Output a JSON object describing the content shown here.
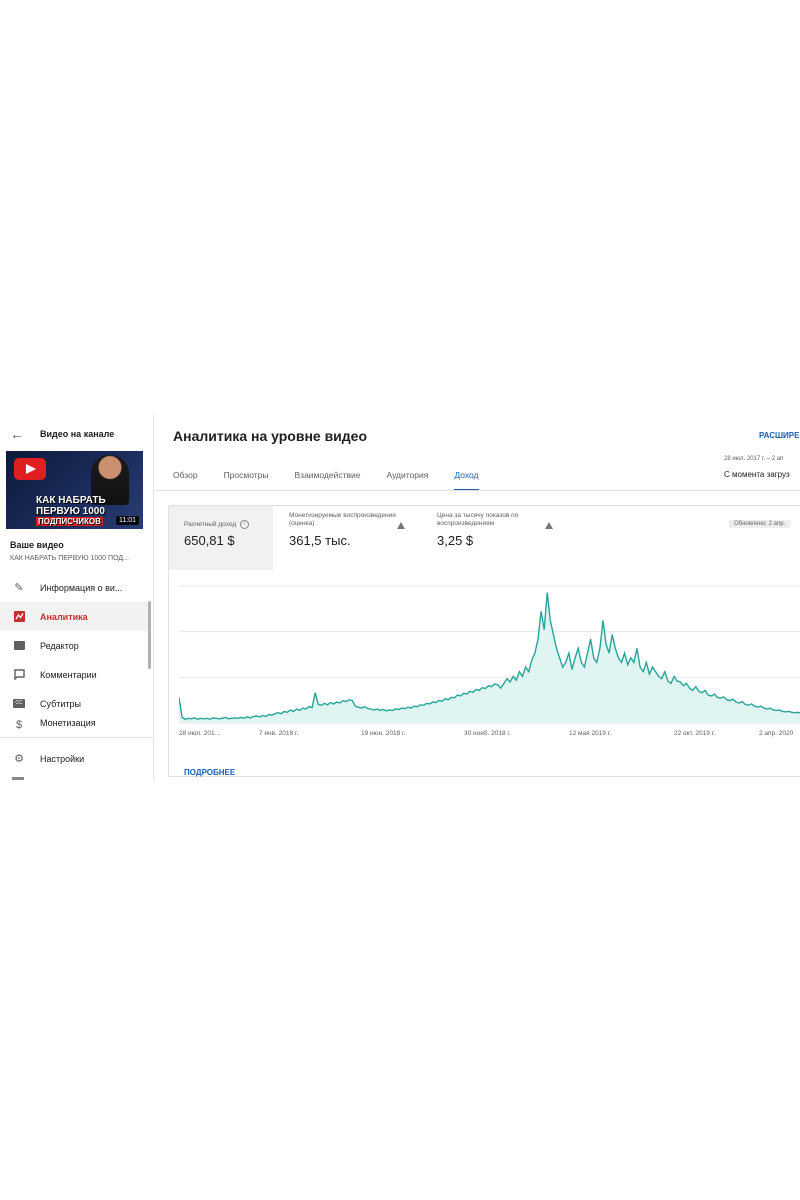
{
  "sidebar": {
    "back_label": "Видео на канале",
    "thumbnail": {
      "line1": "КАК НАБРАТЬ",
      "line2": "ПЕРВУЮ 1000",
      "line3": "ПОДПИСЧИКОВ",
      "duration": "11:01"
    },
    "your_video": "Ваше видео",
    "video_title": "КАК НАБРАТЬ ПЕРВУЮ 1000 ПОД...",
    "items": [
      {
        "label": "Информация о ви...",
        "icon": "pencil-icon"
      },
      {
        "label": "Аналитика",
        "icon": "analytics-icon",
        "active": true
      },
      {
        "label": "Редактор",
        "icon": "editor-icon"
      },
      {
        "label": "Комментарии",
        "icon": "comments-icon"
      },
      {
        "label": "Субтитры",
        "icon": "subtitles-icon"
      },
      {
        "label": "Монетизация",
        "icon": "monetization-icon"
      }
    ],
    "settings_label": "Настройки"
  },
  "header": {
    "title": "Аналитика на уровне видео",
    "expand": "РАСШИРЕ",
    "date_range": "28 июл. 2017 г. – 2 ап",
    "date_scope": "С момента загруз"
  },
  "tabs": [
    {
      "label": "Обзор"
    },
    {
      "label": "Просмотры"
    },
    {
      "label": "Взаимодействие"
    },
    {
      "label": "Аудитория"
    },
    {
      "label": "Доход",
      "active": true
    }
  ],
  "metrics": [
    {
      "label": "Расчетный доход",
      "value": "650,81 $"
    },
    {
      "label": "Монетизируемые воспроизведения (оценка)",
      "value": "361,5 тыс."
    },
    {
      "label": "Цена за тысячу показов по воспроизведениям",
      "value": "3,25 $"
    }
  ],
  "updated": "Обновлено: 2 апр.",
  "more_link": "ПОДРОБНЕЕ",
  "colors": {
    "accent": "#1a5fb4",
    "active_nav": "#c4302b",
    "chart_line": "#26a69a",
    "chart_fill": "#e0f4f1"
  },
  "chart_data": {
    "type": "area",
    "x_ticks": [
      "28 июл. 201...",
      "7 янв. 2018 г.",
      "19 июн. 2018 г.",
      "30 нояб. 2018 г.",
      "12 мая 2019 г.",
      "22 окт. 2019 г.",
      "2 апр. 2020"
    ],
    "grid": true,
    "series": [
      {
        "values": [
          5.5,
          1.2,
          0.8,
          1,
          0.9,
          1.1,
          0.8,
          1,
          0.9,
          1,
          0.8,
          1.1,
          1,
          0.9,
          1,
          1.2,
          0.9,
          1,
          1.1,
          1,
          1.2,
          1,
          1.3,
          1.1,
          1.4,
          1.5,
          1.3,
          1.6,
          1.4,
          1.8,
          1.7,
          2,
          2.2,
          2,
          2.5,
          2.3,
          2.8,
          2.5,
          3,
          2.7,
          3.2,
          3,
          3.5,
          3.3,
          6.5,
          4,
          3.8,
          4.2,
          3.9,
          4.4,
          4.1,
          4.5,
          4.3,
          4.8,
          4.6,
          5,
          4.8,
          3.6,
          3.4,
          3.2,
          3.5,
          3.1,
          3,
          2.8,
          3,
          2.7,
          2.9,
          2.6,
          2.8,
          2.7,
          3,
          2.9,
          3.2,
          3.1,
          3.4,
          3.2,
          3.6,
          3.5,
          3.9,
          3.8,
          4.2,
          4.1,
          4.5,
          4.4,
          4.8,
          4.7,
          5.2,
          5,
          5.5,
          5.4,
          6,
          5.8,
          6.4,
          6.2,
          6.8,
          6.6,
          7.2,
          7,
          7.6,
          7.4,
          8,
          7.8,
          8.4,
          8.2,
          7.5,
          8.5,
          9.5,
          8.8,
          10,
          9.2,
          11,
          10,
          12,
          11,
          13.5,
          15,
          18,
          24,
          20,
          28,
          22,
          19,
          16,
          14,
          12,
          13,
          15,
          11.5,
          14,
          16,
          13,
          12,
          15,
          18,
          14,
          13,
          16,
          22,
          17,
          15,
          19,
          16,
          14,
          13,
          15,
          12.5,
          14,
          13,
          16,
          12,
          11,
          13,
          10.5,
          12,
          11,
          10,
          9.5,
          11,
          9,
          8.5,
          10,
          9,
          8.8,
          8,
          8.5,
          7.5,
          7,
          7.8,
          6.8,
          6.5,
          7,
          6,
          5.8,
          6.2,
          5.5,
          5.3,
          5.6,
          5,
          4.8,
          5.1,
          4.5,
          4.3,
          4.6,
          4,
          3.8,
          4.1,
          3.6,
          3.4,
          3.6,
          3.2,
          3,
          3.2,
          2.8,
          2.7,
          2.8,
          2.5,
          2.4,
          2.5,
          2.3,
          2.2,
          2.3,
          2.1
        ]
      }
    ]
  }
}
